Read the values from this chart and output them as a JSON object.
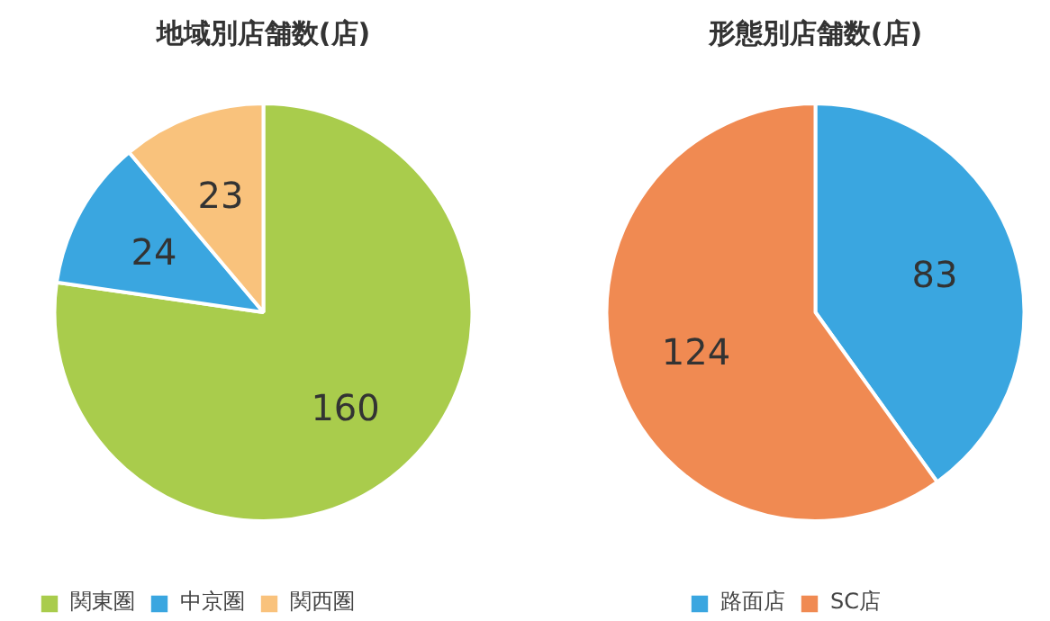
{
  "chart_data": [
    {
      "type": "pie",
      "title": "地域別店舗数(店)",
      "categories": [
        "関東圏",
        "中京圏",
        "関西圏"
      ],
      "values": [
        160,
        24,
        23
      ],
      "colors": [
        "#a9cc4c",
        "#3aa6e0",
        "#f9c27c"
      ],
      "data_labels": true,
      "legend": "bottom"
    },
    {
      "type": "pie",
      "title": "形態別店舗数(店)",
      "categories": [
        "路面店",
        "SC店"
      ],
      "values": [
        83,
        124
      ],
      "colors": [
        "#3aa6e0",
        "#f08a52"
      ],
      "data_labels": true,
      "legend": "bottom"
    }
  ]
}
